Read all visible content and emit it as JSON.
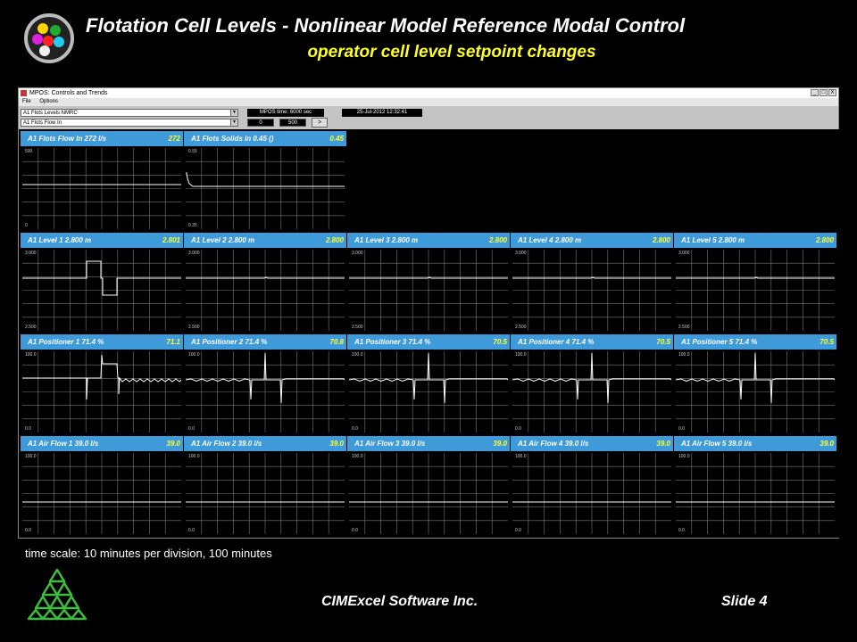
{
  "slide": {
    "title": "Flotation Cell Levels - Nonlinear Model Reference Modal Control",
    "subtitle": "operator cell level setpoint changes",
    "footnote": "time scale: 10 minutes per division, 100 minutes",
    "company": "CIMExcel Software Inc.",
    "slide_number": "Slide 4",
    "logo_icon": "circle-dots-logo-icon",
    "footer_logo_icon": "green-triangles-logo-icon"
  },
  "window": {
    "title": "MPOS: Controls and Trends",
    "menu": [
      "File",
      "Options"
    ],
    "controls": {
      "group_select": "A1 Flots Levels NMRC",
      "trend_select": "A1 Flots Flow In",
      "mpos_time": "MPOS time: 6000  sec",
      "datetime": "25-Jul-2012  12:32:41",
      "range_min": "0",
      "range_max": "500",
      "go_label": ">"
    },
    "buttons": [
      "_",
      "□",
      "X"
    ]
  },
  "colors": {
    "header_blue": "#3e9ad9",
    "value_yellow": "#ff3",
    "trend_white": "#ffffff",
    "subtitle_yellow": "#ffff22"
  },
  "panels": [
    {
      "label": "A1 Flots Flow In   272  l/s",
      "value": "272",
      "axis_max": "500",
      "axis_min": "0",
      "trace": "flow"
    },
    {
      "label": "A1 Flots Solids In   0.45  ()",
      "value": "0.45",
      "axis_max": "0.55",
      "axis_min": "0.35",
      "trace": "solids"
    },
    {
      "label": "A1 Level 1   2.800   m",
      "value": "2.801",
      "axis_max": "3.000",
      "axis_min": "2.500",
      "trace": "level1"
    },
    {
      "label": "A1 Level 2   2.800   m",
      "value": "2.800",
      "axis_max": "3.000",
      "axis_min": "2.500",
      "trace": "level"
    },
    {
      "label": "A1 Level 3   2.800   m",
      "value": "2.800",
      "axis_max": "3.000",
      "axis_min": "2.500",
      "trace": "level"
    },
    {
      "label": "A1 Level 4   2.800   m",
      "value": "2.800",
      "axis_max": "3.000",
      "axis_min": "2.500",
      "trace": "level"
    },
    {
      "label": "A1 Level 5   2.800   m",
      "value": "2.800",
      "axis_max": "3.000",
      "axis_min": "2.500",
      "trace": "level"
    },
    {
      "label": "A1 Positioner 1   71.4  %",
      "value": "71.1",
      "axis_max": "100.0",
      "axis_min": "0.0",
      "trace": "pos1"
    },
    {
      "label": "A1 Positioner 2   71.4  %",
      "value": "70.8",
      "axis_max": "100.0",
      "axis_min": "0.0",
      "trace": "pos"
    },
    {
      "label": "A1 Positioner 3   71.4  %",
      "value": "70.5",
      "axis_max": "100.0",
      "axis_min": "0.0",
      "trace": "pos"
    },
    {
      "label": "A1 Positioner 4   71.4  %",
      "value": "70.5",
      "axis_max": "100.0",
      "axis_min": "0.0",
      "trace": "pos"
    },
    {
      "label": "A1 Positioner 5   71.4  %",
      "value": "70.5",
      "axis_max": "100.0",
      "axis_min": "0.0",
      "trace": "pos"
    },
    {
      "label": "A1 Air Flow 1   39.0  l/s",
      "value": "39.0",
      "axis_max": "100.0",
      "axis_min": "0.0",
      "trace": "air"
    },
    {
      "label": "A1 Air Flow 2   39.0  l/s",
      "value": "39.0",
      "axis_max": "100.0",
      "axis_min": "0.0",
      "trace": "air"
    },
    {
      "label": "A1 Air Flow 3   39.0  l/s",
      "value": "39.0",
      "axis_max": "100.0",
      "axis_min": "0.0",
      "trace": "air"
    },
    {
      "label": "A1 Air Flow 4   39.0  l/s",
      "value": "39.0",
      "axis_max": "100.0",
      "axis_min": "0.0",
      "trace": "air"
    },
    {
      "label": "A1 Air Flow 5   39.0  l/s",
      "value": "39.0",
      "axis_max": "100.0",
      "axis_min": "0.0",
      "trace": "air"
    }
  ]
}
